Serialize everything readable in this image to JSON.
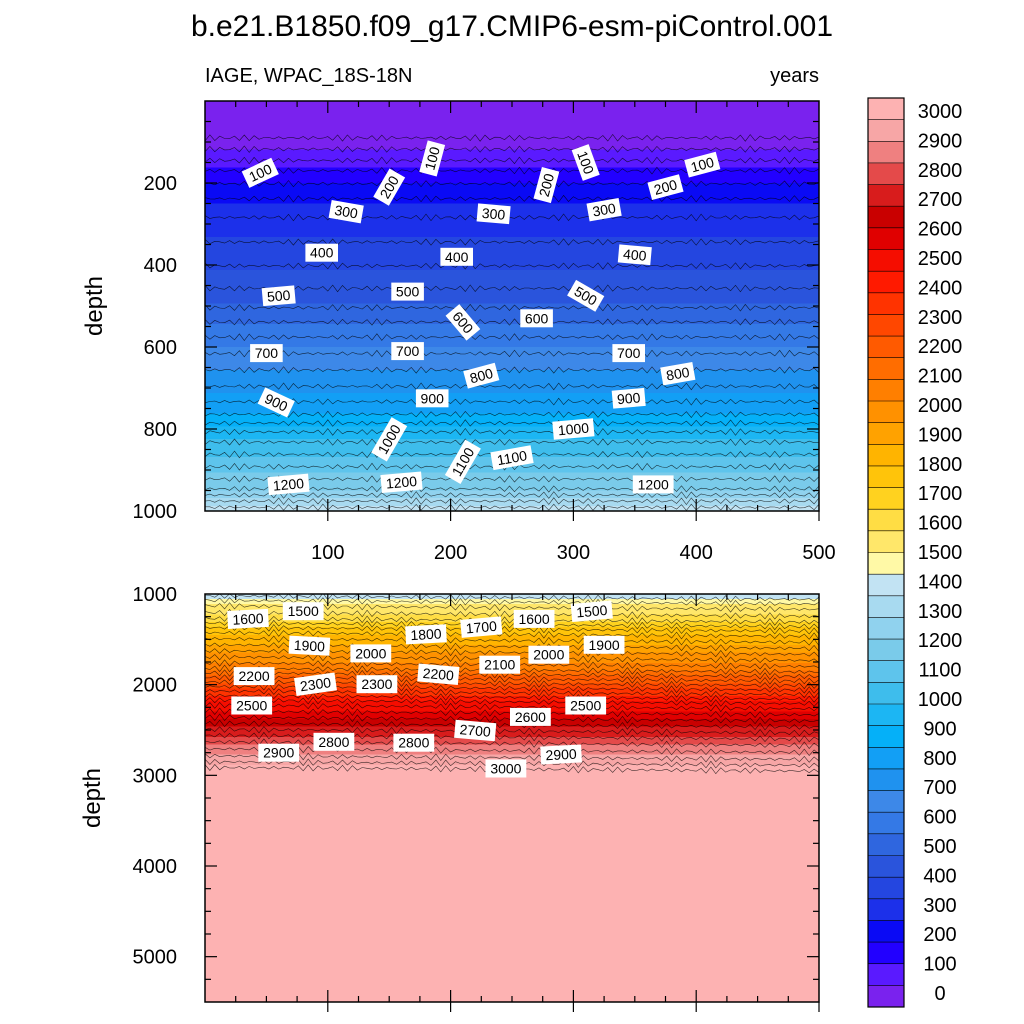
{
  "title": "b.e21.B1850.f09_g17.CMIP6-esm-piControl.001",
  "chart_data": {
    "type": "heatmap",
    "variable": "IAGE, WPAC_18S-18N",
    "units": "years",
    "xaxis": {
      "range": [
        0,
        500
      ],
      "ticks": [
        100,
        200,
        300,
        400,
        500
      ],
      "tick_labels": [
        "100",
        "200",
        "300",
        "400",
        "500"
      ]
    },
    "colorbar": {
      "levels": [
        0,
        100,
        200,
        300,
        400,
        500,
        600,
        700,
        800,
        900,
        1000,
        1100,
        1200,
        1300,
        1400,
        1500,
        1600,
        1700,
        1800,
        1900,
        2000,
        2100,
        2200,
        2300,
        2400,
        2500,
        2600,
        2700,
        2800,
        2900,
        3000
      ],
      "labels": [
        "0",
        "100",
        "200",
        "300",
        "400",
        "500",
        "600",
        "700",
        "800",
        "900",
        "1000",
        "1100",
        "1200",
        "1300",
        "1400",
        "1500",
        "1600",
        "1700",
        "1800",
        "1900",
        "2000",
        "2100",
        "2200",
        "2300",
        "2400",
        "2500",
        "2600",
        "2700",
        "2800",
        "2900",
        "3000"
      ],
      "colors": [
        "#7a22ee",
        "#5a1aff",
        "#2200ff",
        "#0a0af5",
        "#1c30ea",
        "#2446e0",
        "#2a54dc",
        "#2f66df",
        "#3479e6",
        "#3d88e8",
        "#1f92ef",
        "#129ff5",
        "#05b0f8",
        "#1cb6f3",
        "#3ebdec",
        "#5ec4ec",
        "#7acbea",
        "#90d2ee",
        "#a8daf0",
        "#c2e3f3",
        "#fff9a6",
        "#ffe76a",
        "#ffdd44",
        "#ffd21f",
        "#ffc40a",
        "#ffb400",
        "#ffa200",
        "#ff9100",
        "#ff7f00",
        "#ff6d00",
        "#ff5a00",
        "#ff4700",
        "#ff3300",
        "#ff1a00",
        "#f50d00",
        "#e00000",
        "#c90000",
        "#d81c1c",
        "#e44a4a",
        "#ef8080",
        "#f7a6a6",
        "#fdb2b2"
      ]
    },
    "panels": [
      {
        "name": "upper",
        "yaxis": {
          "label": "depth",
          "range": [
            0,
            1000
          ],
          "ticks": [
            200,
            400,
            600,
            800,
            1000
          ],
          "tick_labels": [
            "200",
            "400",
            "600",
            "800",
            "1000"
          ]
        },
        "contour_levels": [
          100,
          200,
          300,
          400,
          500,
          600,
          700,
          800,
          900,
          1000,
          1100,
          1200
        ],
        "contour_labels": [
          {
            "text": "100",
            "x": 45,
            "y": 175,
            "angle": -25
          },
          {
            "text": "100",
            "x": 185,
            "y": 140,
            "angle": -75
          },
          {
            "text": "100",
            "x": 310,
            "y": 150,
            "angle": 70
          },
          {
            "text": "100",
            "x": 405,
            "y": 155,
            "angle": -15
          },
          {
            "text": "200",
            "x": 150,
            "y": 210,
            "angle": -60
          },
          {
            "text": "200",
            "x": 278,
            "y": 205,
            "angle": -75
          },
          {
            "text": "200",
            "x": 375,
            "y": 210,
            "angle": -15
          },
          {
            "text": "300",
            "x": 115,
            "y": 270,
            "angle": 10
          },
          {
            "text": "300",
            "x": 235,
            "y": 275,
            "angle": 5
          },
          {
            "text": "300",
            "x": 325,
            "y": 265,
            "angle": -10
          },
          {
            "text": "400",
            "x": 95,
            "y": 370,
            "angle": 0
          },
          {
            "text": "400",
            "x": 205,
            "y": 380,
            "angle": 0
          },
          {
            "text": "400",
            "x": 350,
            "y": 375,
            "angle": 5
          },
          {
            "text": "500",
            "x": 60,
            "y": 475,
            "angle": -5
          },
          {
            "text": "500",
            "x": 165,
            "y": 465,
            "angle": 0
          },
          {
            "text": "500",
            "x": 310,
            "y": 475,
            "angle": 30
          },
          {
            "text": "600",
            "x": 210,
            "y": 540,
            "angle": 50
          },
          {
            "text": "600",
            "x": 270,
            "y": 530,
            "angle": 0
          },
          {
            "text": "700",
            "x": 50,
            "y": 615,
            "angle": 0
          },
          {
            "text": "700",
            "x": 165,
            "y": 610,
            "angle": 0
          },
          {
            "text": "700",
            "x": 345,
            "y": 615,
            "angle": 0
          },
          {
            "text": "800",
            "x": 225,
            "y": 670,
            "angle": -15
          },
          {
            "text": "800",
            "x": 385,
            "y": 665,
            "angle": -10
          },
          {
            "text": "900",
            "x": 58,
            "y": 735,
            "angle": 25
          },
          {
            "text": "900",
            "x": 185,
            "y": 725,
            "angle": 0
          },
          {
            "text": "900",
            "x": 345,
            "y": 725,
            "angle": -5
          },
          {
            "text": "1000",
            "x": 150,
            "y": 825,
            "angle": -60
          },
          {
            "text": "1000",
            "x": 300,
            "y": 800,
            "angle": -5
          },
          {
            "text": "1100",
            "x": 210,
            "y": 880,
            "angle": -60
          },
          {
            "text": "1100",
            "x": 250,
            "y": 870,
            "angle": -10
          },
          {
            "text": "1200",
            "x": 68,
            "y": 935,
            "angle": -5
          },
          {
            "text": "1200",
            "x": 160,
            "y": 930,
            "angle": -5
          },
          {
            "text": "1200",
            "x": 365,
            "y": 935,
            "angle": 0
          }
        ]
      },
      {
        "name": "lower",
        "yaxis": {
          "label": "depth",
          "range": [
            1000,
            5500
          ],
          "ticks": [
            1000,
            2000,
            3000,
            4000,
            5000
          ],
          "tick_labels": [
            "1000",
            "2000",
            "3000",
            "4000",
            "5000"
          ]
        },
        "contour_levels": [
          1300,
          1400,
          1500,
          1600,
          1700,
          1800,
          1900,
          2000,
          2100,
          2200,
          2300,
          2400,
          2500,
          2600,
          2700,
          2800,
          2900,
          3000
        ],
        "contour_labels": [
          {
            "text": "1600",
            "x": 35,
            "y": 1275,
            "angle": -3
          },
          {
            "text": "1500",
            "x": 80,
            "y": 1190,
            "angle": 0
          },
          {
            "text": "1800",
            "x": 180,
            "y": 1445,
            "angle": -3
          },
          {
            "text": "1700",
            "x": 225,
            "y": 1365,
            "angle": -5
          },
          {
            "text": "1600",
            "x": 268,
            "y": 1275,
            "angle": 0
          },
          {
            "text": "1500",
            "x": 315,
            "y": 1190,
            "angle": -5
          },
          {
            "text": "1900",
            "x": 85,
            "y": 1570,
            "angle": 3
          },
          {
            "text": "1900",
            "x": 325,
            "y": 1560,
            "angle": 0
          },
          {
            "text": "2000",
            "x": 135,
            "y": 1655,
            "angle": 0
          },
          {
            "text": "2000",
            "x": 280,
            "y": 1670,
            "angle": 0
          },
          {
            "text": "2100",
            "x": 240,
            "y": 1780,
            "angle": 0
          },
          {
            "text": "2200",
            "x": 40,
            "y": 1905,
            "angle": 0
          },
          {
            "text": "2200",
            "x": 190,
            "y": 1885,
            "angle": 5
          },
          {
            "text": "2300",
            "x": 90,
            "y": 1995,
            "angle": -8
          },
          {
            "text": "2300",
            "x": 140,
            "y": 1995,
            "angle": 0
          },
          {
            "text": "2500",
            "x": 38,
            "y": 2230,
            "angle": 0
          },
          {
            "text": "2500",
            "x": 310,
            "y": 2230,
            "angle": 0
          },
          {
            "text": "2600",
            "x": 265,
            "y": 2355,
            "angle": 0
          },
          {
            "text": "2700",
            "x": 220,
            "y": 2505,
            "angle": 5
          },
          {
            "text": "2800",
            "x": 105,
            "y": 2630,
            "angle": 0
          },
          {
            "text": "2800",
            "x": 170,
            "y": 2640,
            "angle": 0
          },
          {
            "text": "2900",
            "x": 60,
            "y": 2750,
            "angle": 0
          },
          {
            "text": "2900",
            "x": 290,
            "y": 2770,
            "angle": -3
          },
          {
            "text": "3000",
            "x": 245,
            "y": 2925,
            "angle": 0
          }
        ]
      }
    ]
  }
}
